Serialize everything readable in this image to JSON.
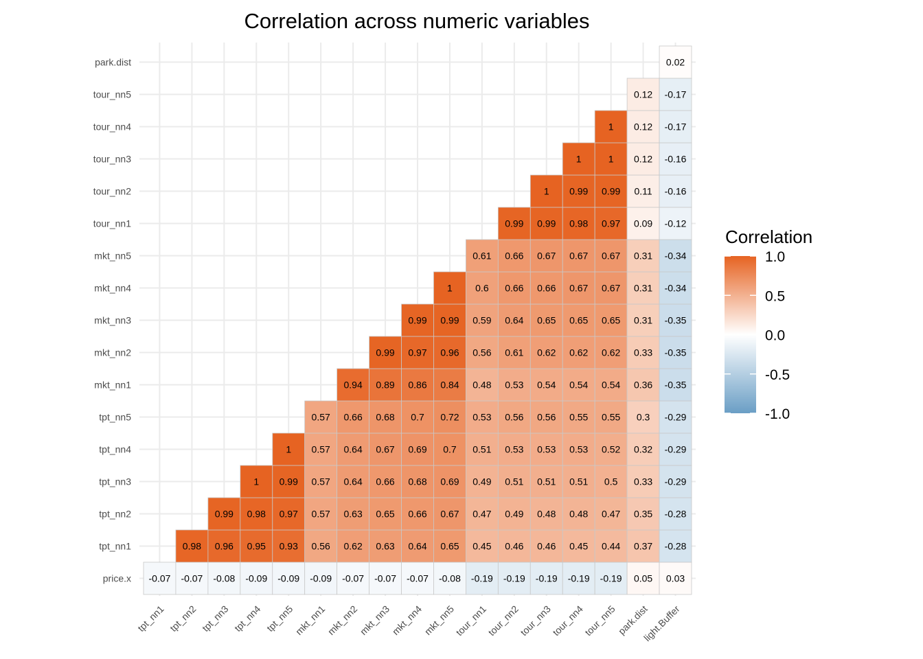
{
  "chart_data": {
    "type": "heatmap",
    "title": "Correlation across numeric variables",
    "xlabel": "",
    "ylabel": "",
    "x_categories": [
      "tpt_nn1",
      "tpt_nn2",
      "tpt_nn3",
      "tpt_nn4",
      "tpt_nn5",
      "mkt_nn1",
      "mkt_nn2",
      "mkt_nn3",
      "mkt_nn4",
      "mkt_nn5",
      "tour_nn1",
      "tour_nn2",
      "tour_nn3",
      "tour_nn4",
      "tour_nn5",
      "park.dist",
      "light.Buffer"
    ],
    "y_categories": [
      "price.x",
      "tpt_nn1",
      "tpt_nn2",
      "tpt_nn3",
      "tpt_nn4",
      "tpt_nn5",
      "mkt_nn1",
      "mkt_nn2",
      "mkt_nn3",
      "mkt_nn4",
      "mkt_nn5",
      "tour_nn1",
      "tour_nn2",
      "tour_nn3",
      "tour_nn4",
      "tour_nn5",
      "park.dist"
    ],
    "values": [
      [
        -0.07,
        -0.07,
        -0.08,
        -0.09,
        -0.09,
        -0.09,
        -0.07,
        -0.07,
        -0.07,
        -0.08,
        -0.19,
        -0.19,
        -0.19,
        -0.19,
        -0.19,
        0.05,
        0.03
      ],
      [
        null,
        0.98,
        0.96,
        0.95,
        0.93,
        0.56,
        0.62,
        0.63,
        0.64,
        0.65,
        0.45,
        0.46,
        0.46,
        0.45,
        0.44,
        0.37,
        -0.28
      ],
      [
        null,
        null,
        0.99,
        0.98,
        0.97,
        0.57,
        0.63,
        0.65,
        0.66,
        0.67,
        0.47,
        0.49,
        0.48,
        0.48,
        0.47,
        0.35,
        -0.28
      ],
      [
        null,
        null,
        null,
        1,
        0.99,
        0.57,
        0.64,
        0.66,
        0.68,
        0.69,
        0.49,
        0.51,
        0.51,
        0.51,
        0.5,
        0.33,
        -0.29
      ],
      [
        null,
        null,
        null,
        null,
        1,
        0.57,
        0.64,
        0.67,
        0.69,
        0.7,
        0.51,
        0.53,
        0.53,
        0.53,
        0.52,
        0.32,
        -0.29
      ],
      [
        null,
        null,
        null,
        null,
        null,
        0.57,
        0.66,
        0.68,
        0.7,
        0.72,
        0.53,
        0.56,
        0.56,
        0.55,
        0.55,
        0.3,
        -0.29
      ],
      [
        null,
        null,
        null,
        null,
        null,
        null,
        0.94,
        0.89,
        0.86,
        0.84,
        0.48,
        0.53,
        0.54,
        0.54,
        0.54,
        0.36,
        -0.35
      ],
      [
        null,
        null,
        null,
        null,
        null,
        null,
        null,
        0.99,
        0.97,
        0.96,
        0.56,
        0.61,
        0.62,
        0.62,
        0.62,
        0.33,
        -0.35
      ],
      [
        null,
        null,
        null,
        null,
        null,
        null,
        null,
        null,
        0.99,
        0.99,
        0.59,
        0.64,
        0.65,
        0.65,
        0.65,
        0.31,
        -0.35
      ],
      [
        null,
        null,
        null,
        null,
        null,
        null,
        null,
        null,
        null,
        1,
        0.6,
        0.66,
        0.66,
        0.67,
        0.67,
        0.31,
        -0.34
      ],
      [
        null,
        null,
        null,
        null,
        null,
        null,
        null,
        null,
        null,
        null,
        0.61,
        0.66,
        0.67,
        0.67,
        0.67,
        0.31,
        -0.34
      ],
      [
        null,
        null,
        null,
        null,
        null,
        null,
        null,
        null,
        null,
        null,
        null,
        0.99,
        0.99,
        0.98,
        0.97,
        0.09,
        -0.12
      ],
      [
        null,
        null,
        null,
        null,
        null,
        null,
        null,
        null,
        null,
        null,
        null,
        null,
        1,
        0.99,
        0.99,
        0.11,
        -0.16
      ],
      [
        null,
        null,
        null,
        null,
        null,
        null,
        null,
        null,
        null,
        null,
        null,
        null,
        null,
        1,
        1,
        0.12,
        -0.16
      ],
      [
        null,
        null,
        null,
        null,
        null,
        null,
        null,
        null,
        null,
        null,
        null,
        null,
        null,
        null,
        1,
        0.12,
        -0.17
      ],
      [
        null,
        null,
        null,
        null,
        null,
        null,
        null,
        null,
        null,
        null,
        null,
        null,
        null,
        null,
        null,
        0.12,
        -0.17
      ],
      [
        null,
        null,
        null,
        null,
        null,
        null,
        null,
        null,
        null,
        null,
        null,
        null,
        null,
        null,
        null,
        null,
        0.02
      ]
    ],
    "color_scale": {
      "low": "#6a9ec5",
      "mid": "#ffffff",
      "high": "#e66322",
      "limits": [
        -1,
        1
      ],
      "midpoint": 0
    },
    "legend": {
      "title": "Correlation",
      "position": "right",
      "ticks": [
        1.0,
        0.5,
        0.0,
        -0.5,
        -1.0
      ],
      "tick_labels": [
        "1.0",
        "0.5",
        "0.0",
        "-0.5",
        "-1.0"
      ]
    },
    "grid": true
  }
}
